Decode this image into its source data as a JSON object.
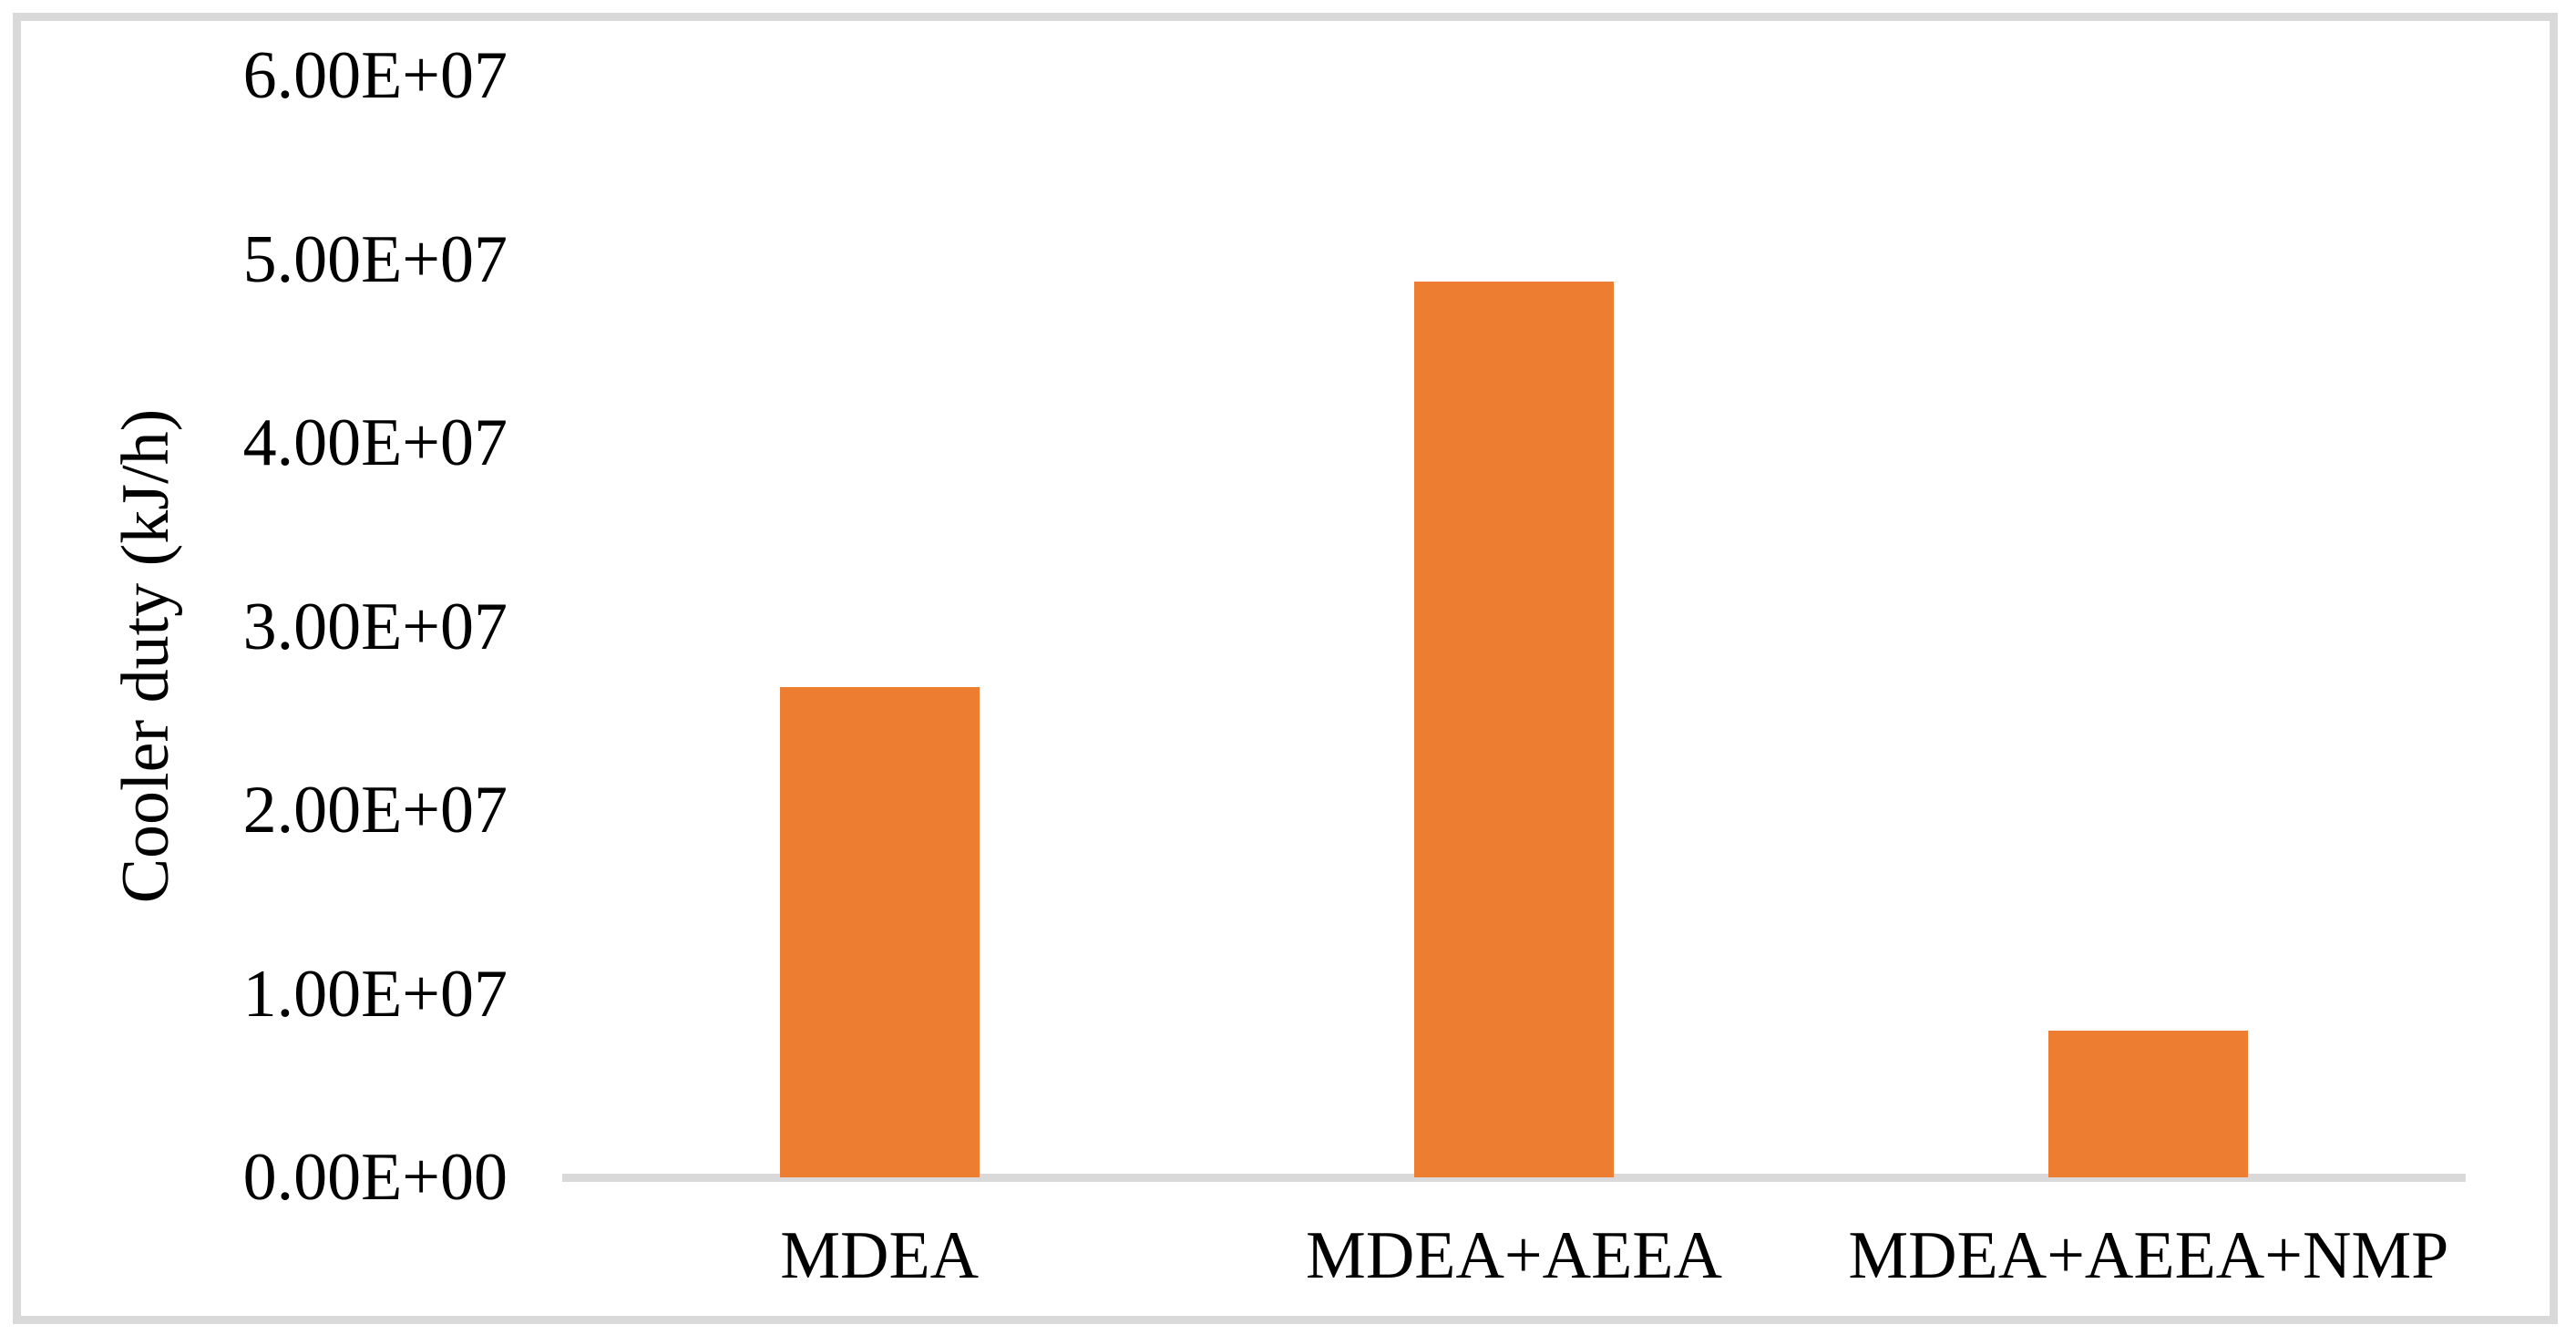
{
  "figure": {
    "background": "#FFFFFF",
    "border_color": "#D9D9D9"
  },
  "chart_data": {
    "type": "bar",
    "ylabel": "Cooler duty (kJ/h)",
    "categories": [
      "MDEA",
      "MDEA+AEEA",
      "MDEA+AEEA+NMP"
    ],
    "values": [
      26700000,
      48800000,
      8000000
    ],
    "ylim": [
      0,
      60000000
    ],
    "y_tick_interval": 10000000,
    "y_tick_labels": [
      "0.00E+00",
      "1.00E+07",
      "2.00E+07",
      "3.00E+07",
      "4.00E+07",
      "5.00E+07",
      "6.00E+07"
    ],
    "bar_color": "#ED7D31",
    "axis_line_color": "#D9D9D9",
    "gridlines": false,
    "legend_position": "none"
  }
}
